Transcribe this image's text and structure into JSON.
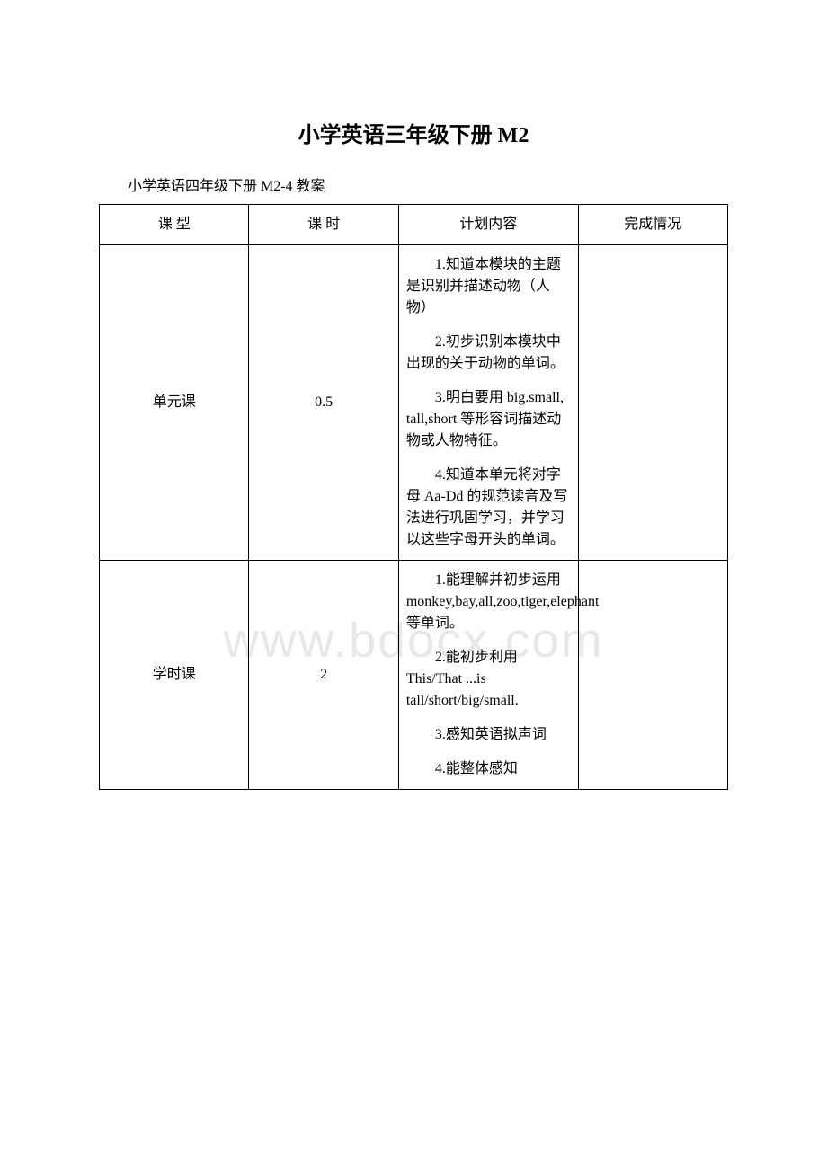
{
  "title": "小学英语三年级下册 M2",
  "subtitle": "小学英语四年级下册 M2-4 教案",
  "watermark": "www.bdocx.com",
  "headers": {
    "col1": "课 型",
    "col2": "课 时",
    "col3": "计划内容",
    "col4": "完成情况"
  },
  "rows": [
    {
      "type": "单元课",
      "hours": "0.5",
      "content": [
        "1.知道本模块的主题是识别并描述动物（人物）",
        "2.初步识别本模块中出现的关于动物的单词。",
        "3.明白要用 big.small, tall,short 等形容词描述动物或人物特征。",
        "4.知道本单元将对字母 Aa-Dd 的规范读音及写法进行巩固学习，并学习以这些字母开头的单词。"
      ],
      "status": ""
    },
    {
      "type": "学时课",
      "hours": "2",
      "content": [
        "1.能理解并初步运用monkey,bay,all,zoo,tiger,elephant 等单词。",
        "2.能初步利用 This/That ...is tall/short/big/small.",
        "3.感知英语拟声词",
        "4.能整体感知"
      ],
      "status": ""
    }
  ]
}
